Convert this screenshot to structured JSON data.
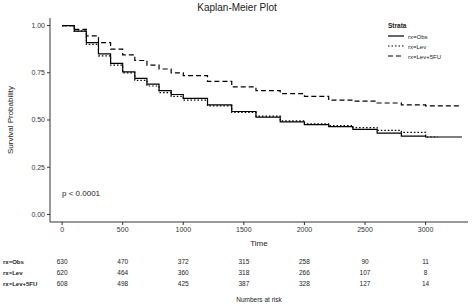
{
  "chart_data": {
    "type": "step",
    "title": "Kaplan-Meier Plot",
    "x_label": "Time",
    "y_label": "Survival Probability",
    "xlim": [
      -100,
      3350
    ],
    "ylim": [
      -0.04,
      1.04
    ],
    "xticks": [
      0,
      500,
      1000,
      1500,
      2000,
      2500,
      3000
    ],
    "yticks": [
      {
        "value": 0,
        "label": "0.00"
      },
      {
        "value": 0.25,
        "label": "0.25"
      },
      {
        "value": 0.5,
        "label": "0.50"
      },
      {
        "value": 0.75,
        "label": "0.75"
      },
      {
        "value": 1,
        "label": "1.00"
      }
    ],
    "grid": false,
    "legend": "top right",
    "legend_title": "Strata",
    "annotation": "p < 0.0001",
    "series": [
      {
        "name": "rx=Obs",
        "color": "#000000",
        "line_style": "solid",
        "x": [
          0,
          100,
          200,
          300,
          400,
          500,
          600,
          700,
          800,
          900,
          1000,
          1200,
          1400,
          1600,
          1800,
          2000,
          2200,
          2400,
          2600,
          2800,
          3000,
          3300
        ],
        "values": [
          1,
          0.97,
          0.91,
          0.85,
          0.8,
          0.755,
          0.72,
          0.69,
          0.655,
          0.635,
          0.615,
          0.58,
          0.545,
          0.515,
          0.49,
          0.475,
          0.465,
          0.45,
          0.43,
          0.415,
          0.41,
          0.41
        ]
      },
      {
        "name": "rx=Lev",
        "color": "#000000",
        "line_style": "dotted",
        "x": [
          0,
          100,
          200,
          300,
          400,
          500,
          600,
          700,
          800,
          900,
          1000,
          1200,
          1400,
          1600,
          1800,
          2000,
          2200,
          2400,
          2600,
          2800,
          3000,
          3100
        ],
        "values": [
          1,
          0.97,
          0.9,
          0.84,
          0.79,
          0.75,
          0.71,
          0.68,
          0.645,
          0.625,
          0.605,
          0.575,
          0.54,
          0.52,
          0.495,
          0.48,
          0.47,
          0.46,
          0.445,
          0.435,
          0.41,
          0.41
        ]
      },
      {
        "name": "rx=Lev+5FU",
        "color": "#000000",
        "line_style": "dashed",
        "x": [
          0,
          100,
          200,
          300,
          400,
          500,
          600,
          700,
          800,
          900,
          1000,
          1200,
          1400,
          1600,
          1800,
          2000,
          2200,
          2400,
          2600,
          2800,
          3000,
          3300
        ],
        "values": [
          1,
          0.98,
          0.945,
          0.91,
          0.875,
          0.845,
          0.815,
          0.79,
          0.77,
          0.75,
          0.735,
          0.705,
          0.675,
          0.655,
          0.64,
          0.625,
          0.605,
          0.6,
          0.59,
          0.58,
          0.575,
          0.575
        ]
      }
    ],
    "risk_table": {
      "title": "Numbers at risk",
      "times": [
        0,
        500,
        1000,
        1500,
        2000,
        2500,
        3000
      ],
      "rows": [
        {
          "name": "rx=Obs",
          "values": [
            630,
            470,
            372,
            315,
            258,
            90,
            11
          ]
        },
        {
          "name": "rx=Lev",
          "values": [
            620,
            464,
            360,
            318,
            266,
            107,
            8
          ]
        },
        {
          "name": "rx=Lev+5FU",
          "values": [
            608,
            498,
            425,
            387,
            328,
            127,
            14
          ]
        }
      ]
    }
  }
}
